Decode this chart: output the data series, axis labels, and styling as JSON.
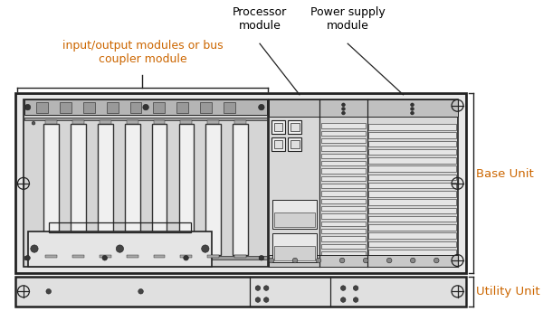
{
  "bg_color": "#ffffff",
  "label_io": "input/output modules or bus\ncoupler module",
  "label_proc": "Processor\nmodule",
  "label_pwr": "Power supply\nmodule",
  "label_base": "Base Unit",
  "label_util": "Utility Unit",
  "io_color": "#cc6600",
  "proc_color": "#000000",
  "pwr_color": "#000000",
  "base_color": "#cc6600",
  "util_color": "#cc6600",
  "label_color": "#000000",
  "line_color": "#222222",
  "fill_outer": "#f5f5f5",
  "fill_light": "#e8e8e8",
  "fill_dark": "#cccccc",
  "fill_mid": "#d8d8d8",
  "fill_stripe": "#d0d0d0"
}
